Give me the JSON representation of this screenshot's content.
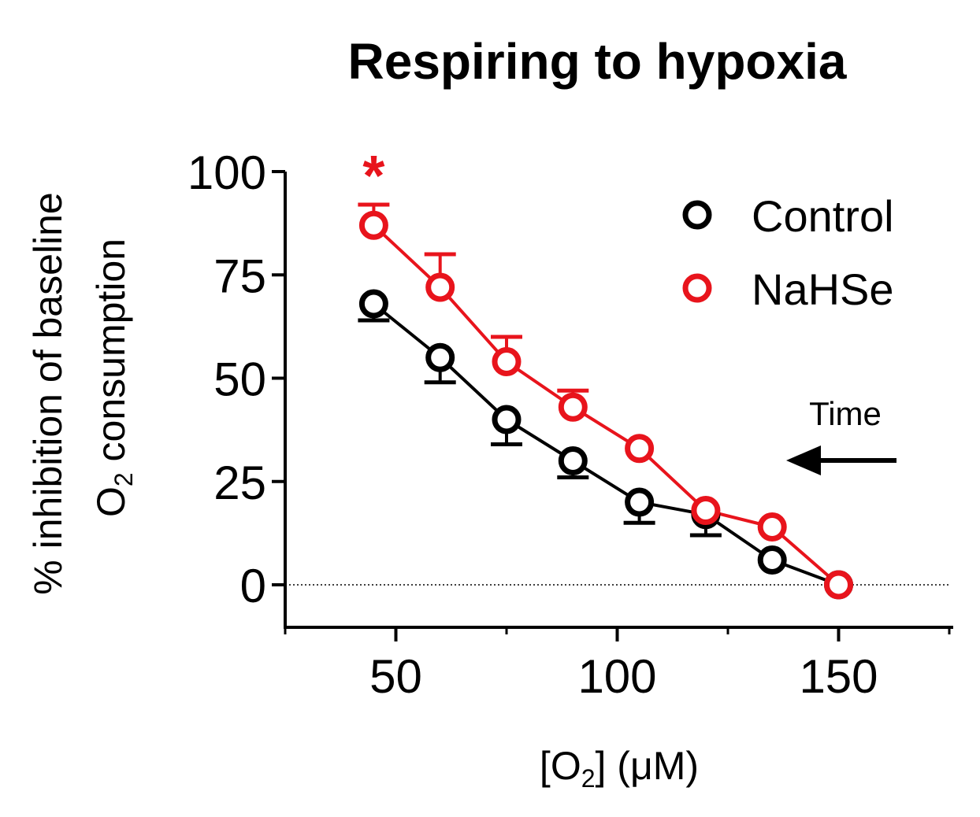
{
  "chart_data": {
    "type": "line",
    "title": "Respiring to hypoxia",
    "ylabel_line1": "% inhibition of baseline",
    "ylabel_line2_base": "O",
    "ylabel_line2_sub": "2",
    "ylabel_line2_rest": " consumption",
    "xlabel_prefix": "[O",
    "xlabel_sub": "2",
    "xlabel_suffix": "] (μM)",
    "xlim": [
      25,
      175
    ],
    "ylim": [
      -10,
      100
    ],
    "x_ticks": [
      50,
      100,
      150
    ],
    "x_minor_ticks": [
      25,
      75,
      125,
      175
    ],
    "y_ticks": [
      0,
      25,
      50,
      75,
      100
    ],
    "reference_line_y": 0,
    "series": [
      {
        "name": "Control",
        "color": "#000000",
        "x": [
          45,
          60,
          75,
          90,
          105,
          120,
          135,
          150
        ],
        "y": [
          68,
          55,
          40,
          30,
          20,
          17,
          6,
          0
        ],
        "error": [
          4,
          6,
          6,
          4,
          5,
          5,
          0,
          0
        ],
        "error_direction": "down"
      },
      {
        "name": "NaHSe",
        "color": "#e8141c",
        "x": [
          45,
          60,
          75,
          90,
          105,
          120,
          135,
          150
        ],
        "y": [
          87,
          72,
          54,
          43,
          33,
          18,
          14,
          0
        ],
        "error": [
          5,
          8,
          6,
          4,
          0,
          0,
          0,
          0
        ],
        "error_direction": "up"
      }
    ],
    "significance": {
      "label": "*",
      "x": 45,
      "y": 100,
      "color": "#e8141c"
    },
    "annotation": {
      "label": "Time",
      "arrow": "left"
    },
    "legend_position": "top-right"
  }
}
